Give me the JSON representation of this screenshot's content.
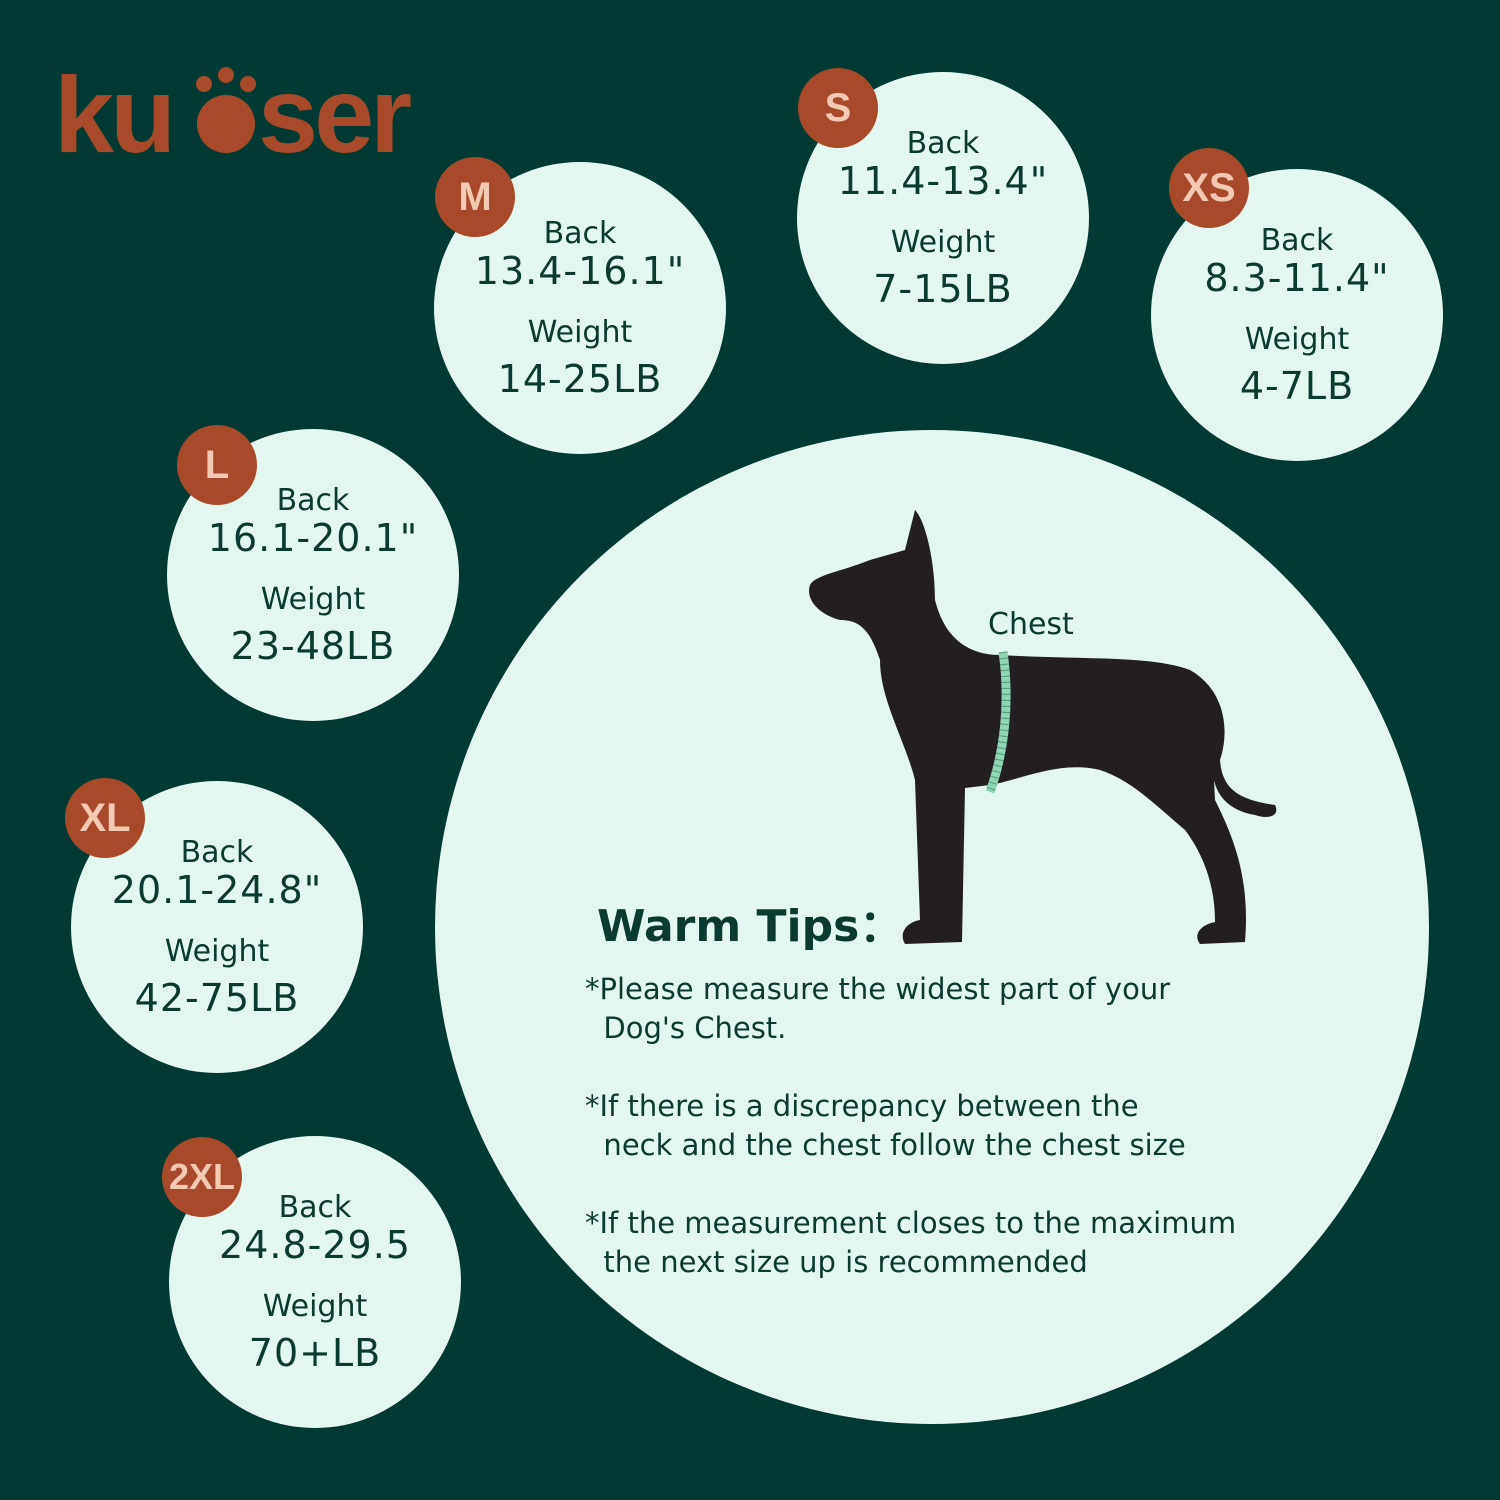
{
  "brand": {
    "logo_text": "kuoser",
    "color": "#a84a2a"
  },
  "colors": {
    "background": "#003a32",
    "circle": "#e3f6ef",
    "badge": "#a84a2a",
    "text": "#0b3a30",
    "tape": "#8fd6b5"
  },
  "sizes": [
    {
      "size": "M",
      "back_label": "Back",
      "back": "13.4-16.1\"",
      "weight_label": "Weight",
      "weight": "14-25LB"
    },
    {
      "size": "S",
      "back_label": "Back",
      "back": "11.4-13.4\"",
      "weight_label": "Weight",
      "weight": "7-15LB"
    },
    {
      "size": "XS",
      "back_label": "Back",
      "back": "8.3-11.4\"",
      "weight_label": "Weight",
      "weight": "4-7LB"
    },
    {
      "size": "L",
      "back_label": "Back",
      "back": "16.1-20.1\"",
      "weight_label": "Weight",
      "weight": "23-48LB"
    },
    {
      "size": "XL",
      "back_label": "Back",
      "back": "20.1-24.8\"",
      "weight_label": "Weight",
      "weight": "42-75LB"
    },
    {
      "size": "2XL",
      "back_label": "Back",
      "back": "24.8-29.5",
      "weight_label": "Weight",
      "weight": "70+LB"
    }
  ],
  "diagram": {
    "chest_label": "Chest"
  },
  "tips": {
    "title": "Warm Tips：",
    "items": [
      "*Please measure the widest part of your\n  Dog's Chest.",
      "*If there is a discrepancy between the\n  neck and the chest follow the chest size",
      "*If the measurement closes to the maximum\n  the next size up is recommended"
    ]
  }
}
